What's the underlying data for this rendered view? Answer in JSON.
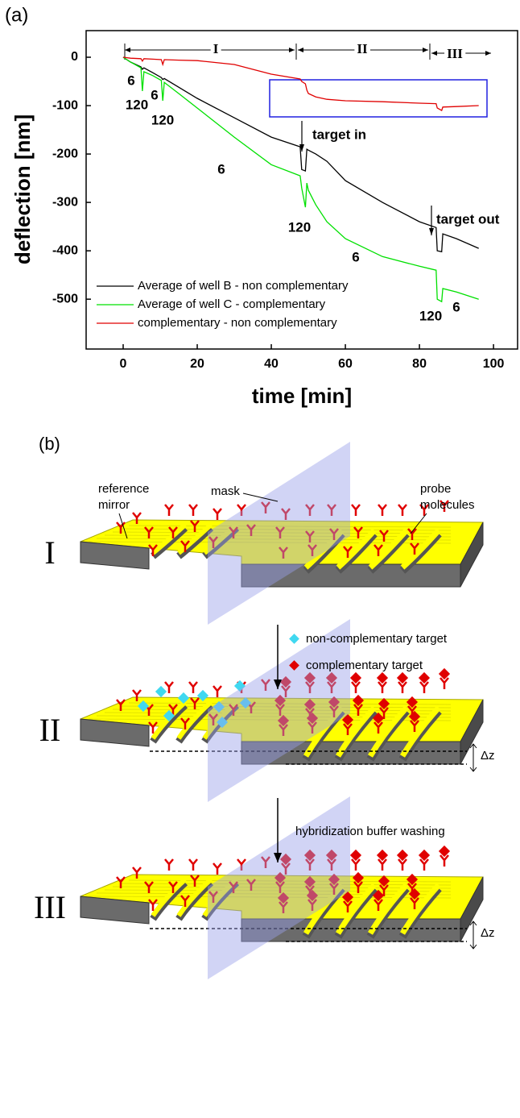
{
  "panel_a_label": "(a)",
  "chart_data": {
    "type": "line",
    "xlabel": "time [min]",
    "ylabel": "deflection [nm]",
    "x": [
      0,
      2,
      4.8,
      5.2,
      5.6,
      8,
      10.3,
      10.7,
      11.1,
      15,
      20,
      30,
      40,
      47.8,
      48.2,
      49.2,
      49.6,
      50,
      52,
      55,
      60,
      70,
      80,
      84.5,
      84.8,
      86,
      86.3,
      90,
      96
    ],
    "series": [
      {
        "name": "Average of well B - non complementary",
        "color": "#000000",
        "values": [
          0,
          -10,
          -20,
          -25,
          -22,
          -32,
          -42,
          -46,
          -44,
          -62,
          -85,
          -125,
          -165,
          -185,
          -232,
          -235,
          -190,
          -192,
          -200,
          -215,
          -255,
          -300,
          -340,
          -352,
          -400,
          -402,
          -365,
          -375,
          -395
        ]
      },
      {
        "name": "Average of well C - complementary",
        "color": "#00e000",
        "values": [
          0,
          -10,
          -22,
          -70,
          -30,
          -38,
          -48,
          -90,
          -52,
          -75,
          -105,
          -165,
          -222,
          -245,
          -270,
          -310,
          -260,
          -275,
          -305,
          -340,
          -375,
          -412,
          -432,
          -440,
          -500,
          -505,
          -478,
          -485,
          -500
        ]
      },
      {
        "name": "complementary - non complementary",
        "color": "#e00000",
        "values": [
          0,
          -2,
          -3,
          -8,
          -3,
          -4,
          -5,
          -15,
          -5,
          -6,
          -7,
          -15,
          -35,
          -45,
          -50,
          -55,
          -68,
          -75,
          -82,
          -87,
          -90,
          -92,
          -95,
          -96,
          -105,
          -110,
          -103,
          -102,
          -100
        ]
      }
    ],
    "xlim": [
      -10,
      106.5
    ],
    "ylim": [
      -603,
      55
    ],
    "xticks": [
      0,
      20,
      40,
      60,
      80,
      100
    ],
    "yticks": [
      0,
      -100,
      -200,
      -300,
      -400,
      -500
    ],
    "legend": "lower left",
    "phases": [
      "I",
      "II",
      "III"
    ],
    "annotations": [
      "6",
      "120",
      "6",
      "120",
      "6",
      "target in",
      "120",
      "6",
      "target out",
      "120",
      "6"
    ]
  },
  "diagram": {
    "panel_label": "(b)",
    "reference_label": [
      "reference",
      "mirror"
    ],
    "mask_label": "mask",
    "probe_label": [
      "probe",
      "molecules"
    ],
    "stages": [
      "I",
      "II",
      "III"
    ],
    "legend": [
      "non-complementary target",
      "complementary target"
    ],
    "delta": [
      "Δz",
      "Δz"
    ],
    "washing": "hybridization buffer washing"
  }
}
